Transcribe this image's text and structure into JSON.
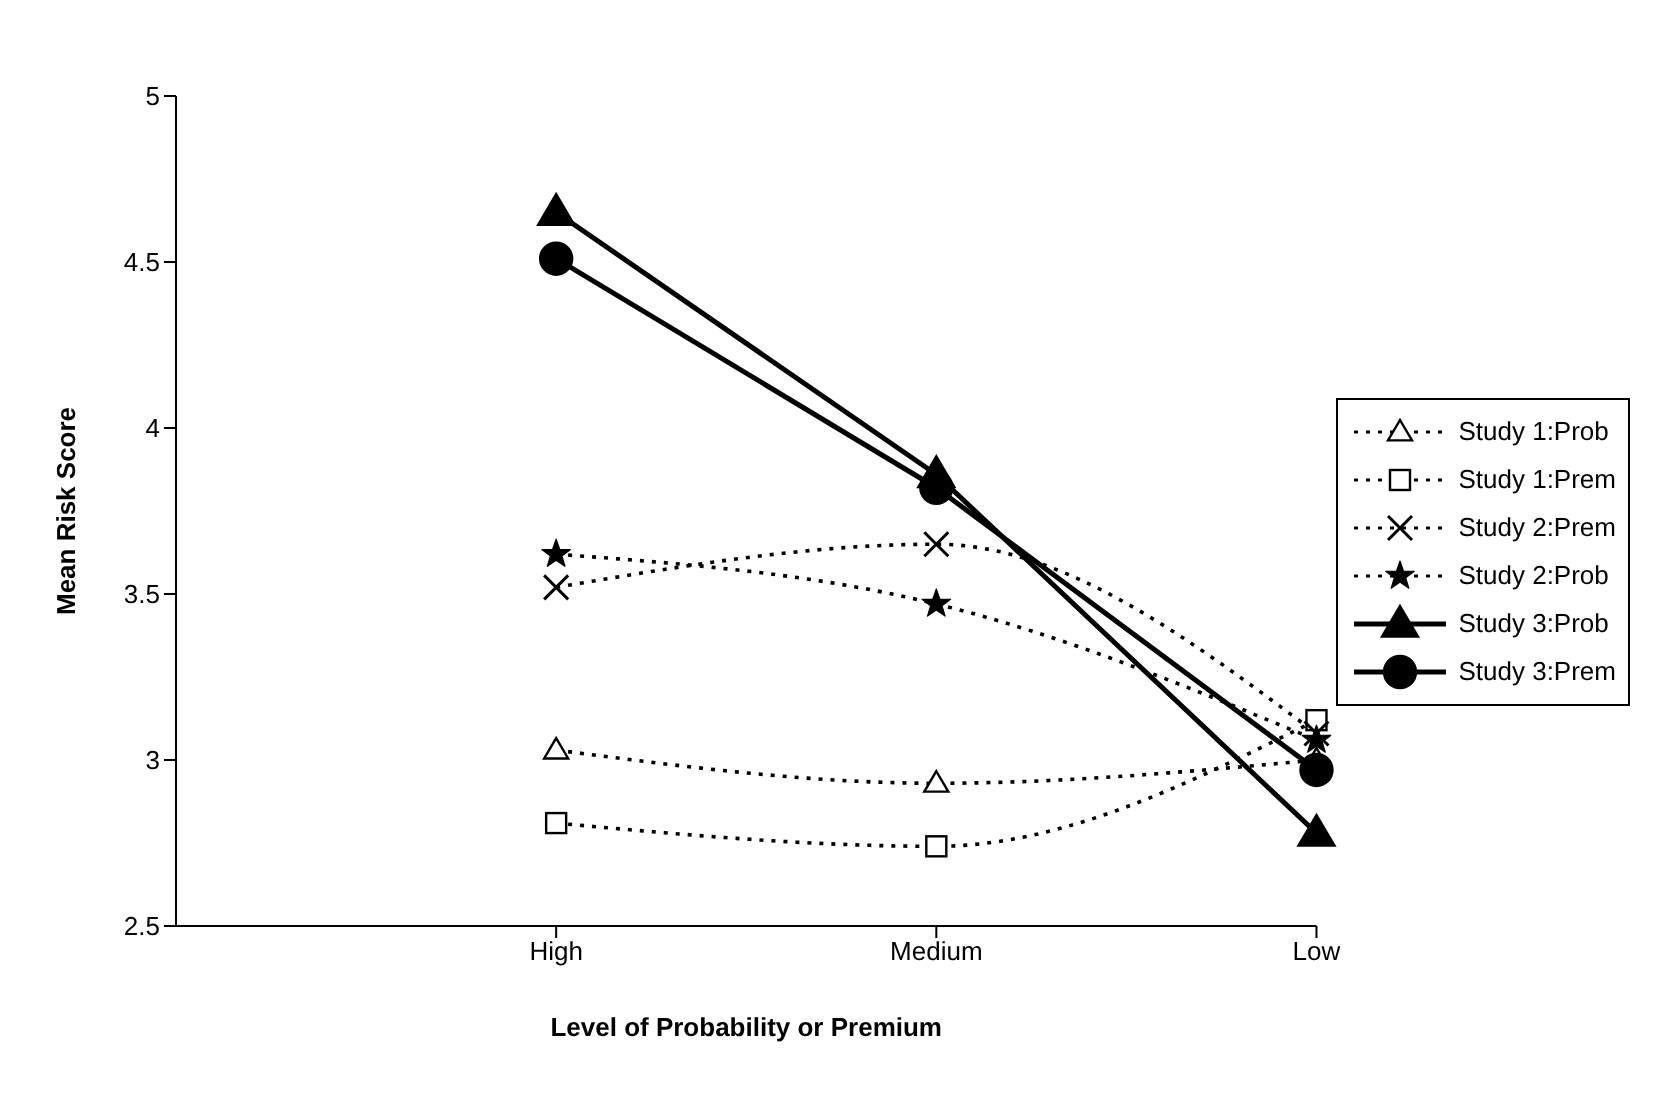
{
  "chart_data": {
    "type": "line",
    "xlabel": "Level of Probability or Premium",
    "ylabel": "Mean Risk Score",
    "categories": [
      "High",
      "Medium",
      "Low"
    ],
    "series": [
      {
        "name": "Study 1:Prob",
        "color": "#000000",
        "marker": "triangle",
        "line_style": "dotted",
        "values": [
          3.03,
          2.93,
          3.0
        ]
      },
      {
        "name": "Study 1:Prem",
        "color": "#000000",
        "marker": "square",
        "line_style": "dotted",
        "values": [
          2.81,
          2.74,
          3.12
        ]
      },
      {
        "name": "Study 2:Prem",
        "color": "#000000",
        "marker": "cross",
        "line_style": "dotted",
        "values": [
          3.52,
          3.65,
          3.08
        ]
      },
      {
        "name": "Study 2:Prob",
        "color": "#000000",
        "marker": "star",
        "line_style": "dotted",
        "values": [
          3.62,
          3.47,
          3.06
        ]
      },
      {
        "name": "Study 3:Prob",
        "color": "#000000",
        "marker": "triangle",
        "line_style": "solid",
        "values": [
          4.65,
          3.86,
          2.78
        ]
      },
      {
        "name": "Study 3:Prem",
        "color": "#000000",
        "marker": "circle",
        "line_style": "solid",
        "values": [
          4.51,
          3.82,
          2.97
        ]
      }
    ],
    "ylim": [
      2.5,
      5
    ],
    "yticks": [
      2.5,
      3,
      3.5,
      4,
      4.5,
      5
    ],
    "grid": false,
    "legend": "right"
  }
}
